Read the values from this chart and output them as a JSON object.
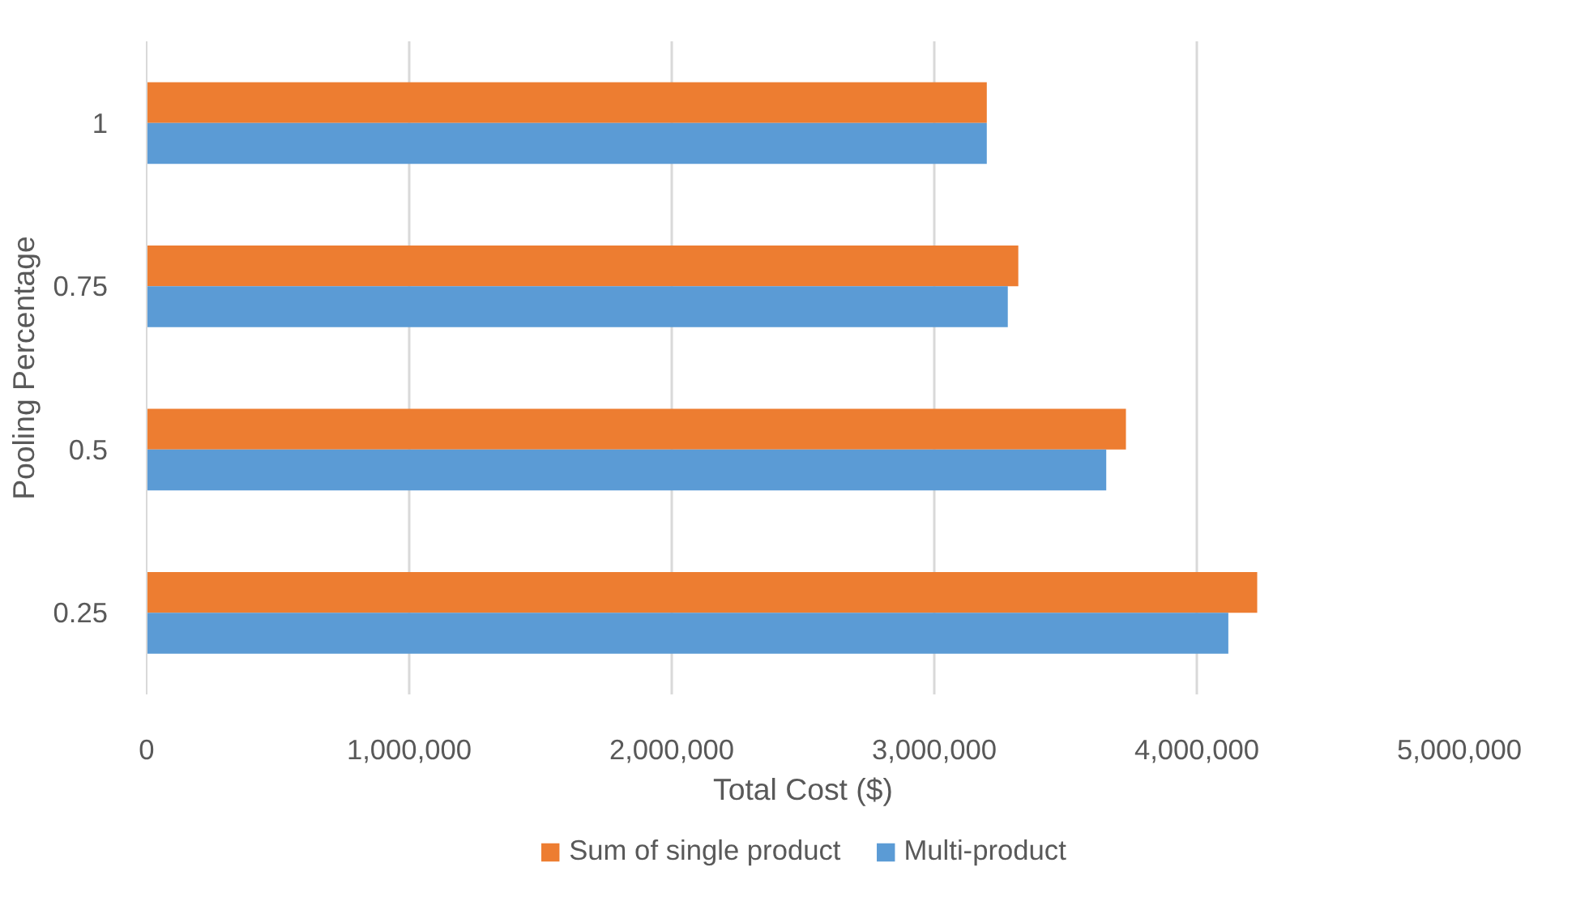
{
  "chart_data": {
    "type": "bar",
    "orientation": "horizontal",
    "xlabel": "Total Cost ($)",
    "ylabel": "Pooling Percentage",
    "categories": [
      "1",
      "0.75",
      "0.5",
      "0.25"
    ],
    "series": [
      {
        "name": "Sum of single product",
        "color": "#ed7d31",
        "values": [
          3200000,
          3320000,
          3730000,
          4230000
        ]
      },
      {
        "name": "Multi-product",
        "color": "#5b9bd5",
        "values": [
          3200000,
          3280000,
          3655000,
          4120000
        ]
      }
    ],
    "xlim": [
      0,
      5000000
    ],
    "xticks": [
      {
        "value": 0,
        "label": "0"
      },
      {
        "value": 1000000,
        "label": "1,000,000"
      },
      {
        "value": 2000000,
        "label": "2,000,000"
      },
      {
        "value": 3000000,
        "label": "3,000,000"
      },
      {
        "value": 4000000,
        "label": "4,000,000"
      },
      {
        "value": 5000000,
        "label": "5,000,000"
      }
    ],
    "grid": "x",
    "legend": "bottom"
  }
}
